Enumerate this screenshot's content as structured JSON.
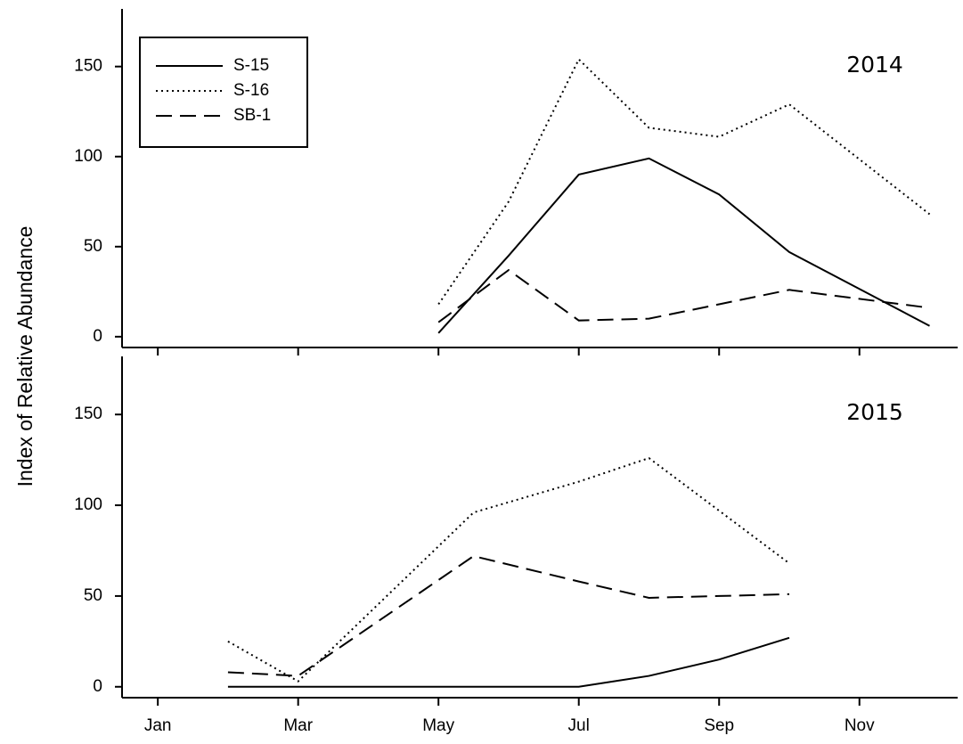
{
  "chart_data": [
    {
      "type": "line",
      "y_label": "Index of Relative Abundance",
      "annotation": "2014",
      "x": [
        5,
        6,
        7,
        8,
        9,
        10,
        12
      ],
      "series": [
        {
          "name": "S-15",
          "color": "#000000",
          "dash": "solid",
          "values": [
            2,
            45,
            90,
            99,
            79,
            47,
            6
          ]
        },
        {
          "name": "S-16",
          "color": "#000000",
          "dash": "dotted",
          "values": [
            18,
            75,
            154,
            116,
            111,
            129,
            68
          ]
        },
        {
          "name": "SB-1",
          "color": "#000000",
          "dash": "dashed",
          "values": [
            8,
            37,
            9,
            10,
            18,
            26,
            16
          ]
        }
      ],
      "xlim": [
        0.49,
        12.4
      ],
      "ylim": [
        -6,
        182
      ],
      "xticks": [
        1,
        3,
        5,
        7,
        9,
        11
      ],
      "yticks": [
        0,
        50,
        100,
        150
      ],
      "legend": "top-left"
    },
    {
      "type": "line",
      "annotation": "2015",
      "x": [
        2,
        3,
        5.5,
        7,
        8,
        9,
        10
      ],
      "series": [
        {
          "color": "#000000",
          "dash": "solid",
          "values": [
            0,
            0,
            0,
            0,
            6,
            15,
            27
          ]
        },
        {
          "color": "#000000",
          "dash": "dotted",
          "values": [
            25,
            3,
            96,
            113,
            126,
            97,
            68
          ]
        },
        {
          "color": "#000000",
          "dash": "dashed",
          "values": [
            8,
            6,
            72,
            58,
            49,
            50,
            51
          ]
        }
      ],
      "xlim": [
        0.49,
        12.4
      ],
      "ylim": [
        -6,
        182
      ],
      "xticks": [
        {
          "value": 1,
          "label": "Jan"
        },
        {
          "value": 3,
          "label": "Mar"
        },
        {
          "value": 5,
          "label": "May"
        },
        {
          "value": 7,
          "label": "Jul"
        },
        {
          "value": 9,
          "label": "Sep"
        },
        {
          "value": 11,
          "label": "Nov"
        }
      ],
      "yticks": [
        0,
        50,
        100,
        150
      ]
    }
  ]
}
